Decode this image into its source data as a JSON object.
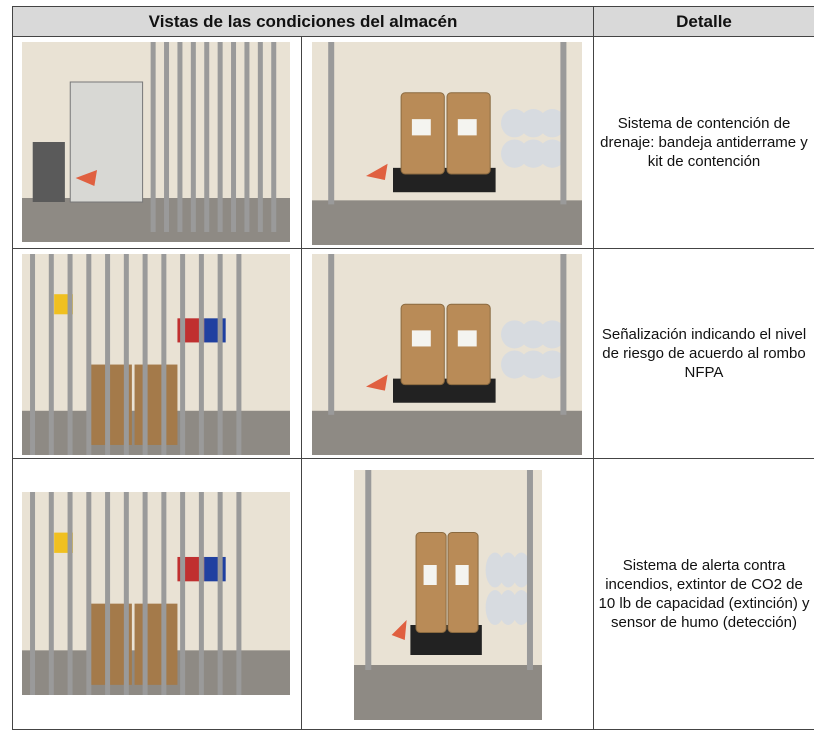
{
  "table": {
    "header": [
      "Vistas de las condiciones del almacén",
      "Detalle"
    ],
    "rows": [
      {
        "detail": "Sistema de contención de drenaje: bandeja antiderrame y kit de contención"
      },
      {
        "detail": "Señalización indicando el nivel de riesgo de acuerdo al rombo NFPA"
      },
      {
        "detail": "Sistema de alerta contra incendios, extintor de CO2 de 10 lb de capacidad (extinción) y sensor de humo (detección)"
      }
    ]
  }
}
